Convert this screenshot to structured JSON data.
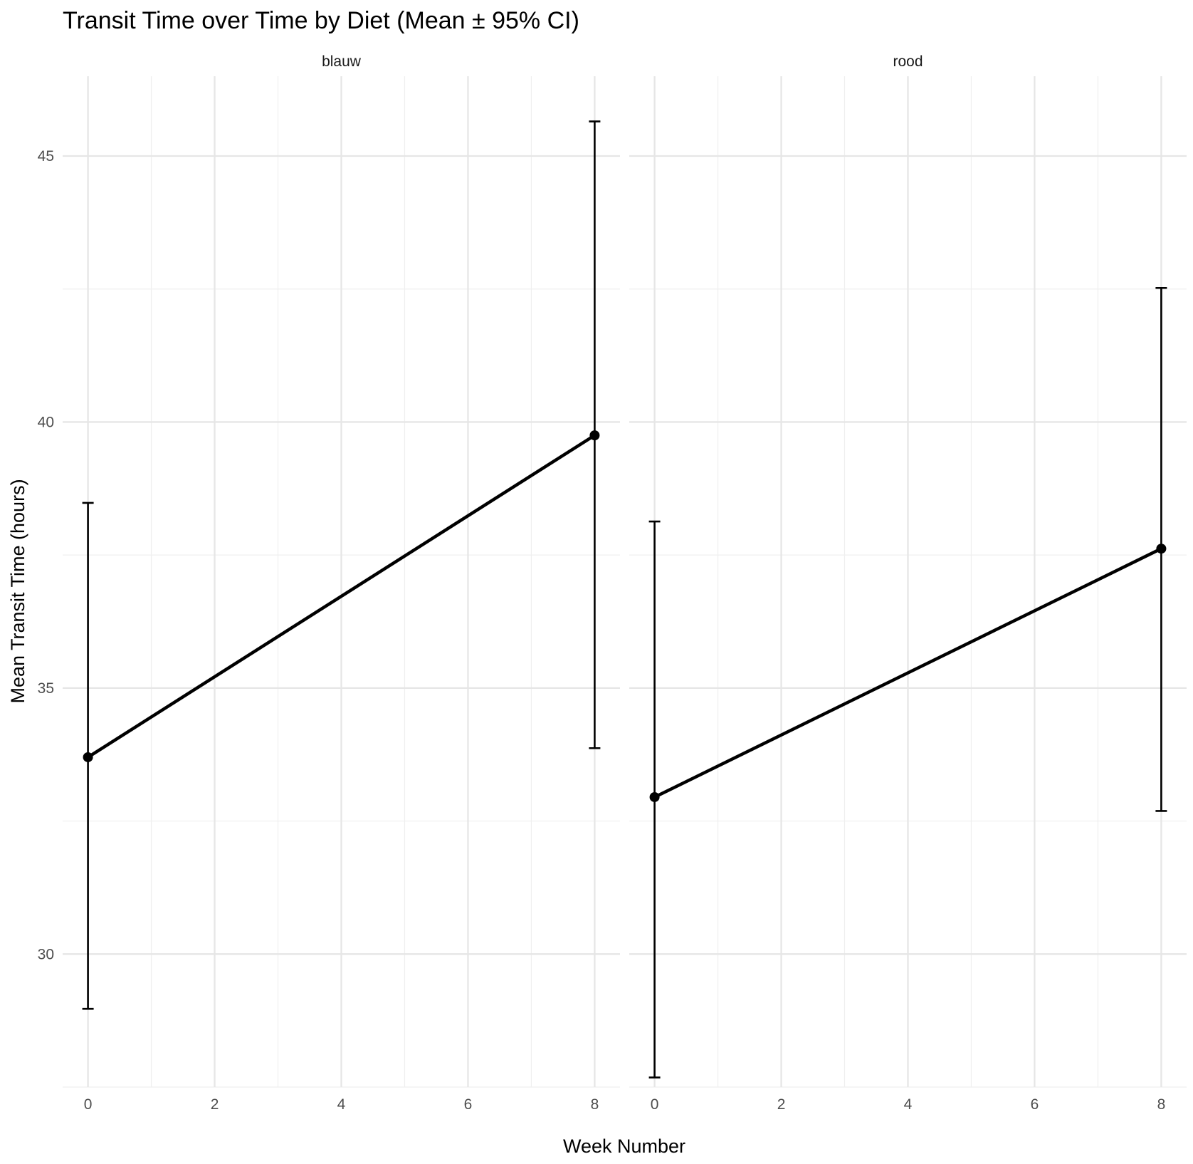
{
  "chart_data": {
    "type": "line",
    "title": "Transit Time over Time by Diet (Mean ± 95% CI)",
    "xlabel": "Week Number",
    "ylabel": "Mean Transit Time (hours)",
    "x_ticks": [
      0,
      2,
      4,
      6,
      8
    ],
    "y_ticks": [
      30,
      35,
      40,
      45
    ],
    "xlim": [
      -0.4,
      8.4
    ],
    "ylim": [
      27.5,
      46.5
    ],
    "grid": true,
    "legend": "none",
    "facets": [
      {
        "label": "blauw",
        "x": [
          0,
          8
        ],
        "y": [
          33.7,
          39.75
        ],
        "ci_low": [
          28.97,
          33.87
        ],
        "ci_high": [
          38.48,
          45.65
        ]
      },
      {
        "label": "rood",
        "x": [
          0,
          8
        ],
        "y": [
          32.95,
          37.62
        ],
        "ci_low": [
          27.68,
          32.69
        ],
        "ci_high": [
          38.13,
          42.52
        ]
      }
    ]
  }
}
